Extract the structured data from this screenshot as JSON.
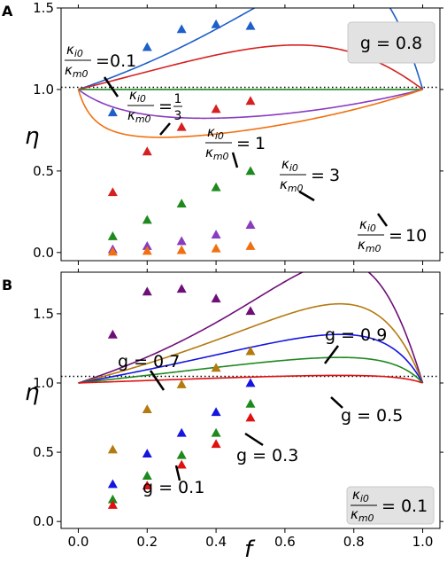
{
  "chart_data": [
    {
      "panel": "A",
      "type": "line",
      "xlabel": "f",
      "ylabel": "η",
      "xlim": [
        -0.05,
        1.05
      ],
      "ylim": [
        -0.05,
        1.5
      ],
      "yticks": [
        0.0,
        0.5,
        1.0,
        1.5
      ],
      "ytick_labels": [
        "0.0",
        "0.5",
        "1.0",
        "1.5"
      ],
      "xticks": [
        0.0,
        0.2,
        0.4,
        0.6,
        0.8,
        1.0
      ],
      "reference_line": {
        "y": 1.0,
        "style": "dotted"
      },
      "box_label": "g = 0.8",
      "marker": "triangle",
      "series": [
        {
          "ratio": "0.1",
          "color": "#1f5fc8",
          "points": {
            "x": [
              0.1,
              0.2,
              0.3,
              0.4,
              0.5
            ],
            "y": [
              0.86,
              1.26,
              1.37,
              1.4,
              1.39
            ]
          }
        },
        {
          "ratio": "1/3",
          "color": "#d62020",
          "points": {
            "x": [
              0.1,
              0.2,
              0.3,
              0.4,
              0.5
            ],
            "y": [
              0.37,
              0.62,
              0.77,
              0.88,
              0.93
            ]
          }
        },
        {
          "ratio": "1",
          "color": "#1e8a1e",
          "points": {
            "x": [
              0.1,
              0.2,
              0.3,
              0.4,
              0.5
            ],
            "y": [
              0.1,
              0.2,
              0.3,
              0.4,
              0.5
            ]
          }
        },
        {
          "ratio": "3",
          "color": "#8a3cc0",
          "points": {
            "x": [
              0.1,
              0.2,
              0.3,
              0.4,
              0.5
            ],
            "y": [
              0.02,
              0.04,
              0.07,
              0.11,
              0.17
            ]
          }
        },
        {
          "ratio": "10",
          "color": "#f07010",
          "points": {
            "x": [
              0.1,
              0.2,
              0.3,
              0.4,
              0.5
            ],
            "y": [
              0.005,
              0.01,
              0.015,
              0.025,
              0.04
            ]
          }
        }
      ],
      "annotations": [
        {
          "ratio": "0.1"
        },
        {
          "ratio": "1/3"
        },
        {
          "ratio": "1"
        },
        {
          "ratio": "3"
        },
        {
          "ratio": "10"
        }
      ]
    },
    {
      "panel": "B",
      "type": "line",
      "xlabel": "f",
      "ylabel": "η",
      "xlim": [
        -0.05,
        1.05
      ],
      "ylim": [
        -0.05,
        1.8
      ],
      "yticks": [
        0.0,
        0.5,
        1.0,
        1.5
      ],
      "ytick_labels": [
        "0.0",
        "0.5",
        "1.0",
        "1.5"
      ],
      "xticks": [
        0.0,
        0.2,
        0.4,
        0.6,
        0.8,
        1.0
      ],
      "xtick_labels": [
        "0.0",
        "0.2",
        "0.4",
        "0.6",
        "0.8",
        "1.0"
      ],
      "reference_line": {
        "y": 1.0,
        "style": "dotted"
      },
      "box_label": "= 0.1",
      "marker": "triangle",
      "series": [
        {
          "g": "0.9",
          "color": "#6e0f78",
          "points": {
            "x": [
              0.1,
              0.2,
              0.3,
              0.4,
              0.5
            ],
            "y": [
              1.35,
              1.66,
              1.68,
              1.61,
              1.52
            ]
          }
        },
        {
          "g": "0.7",
          "color": "#b47a10",
          "points": {
            "x": [
              0.1,
              0.2,
              0.3,
              0.4,
              0.5
            ],
            "y": [
              0.52,
              0.81,
              0.99,
              1.11,
              1.23
            ]
          }
        },
        {
          "g": "0.5",
          "color": "#1515e0",
          "points": {
            "x": [
              0.1,
              0.2,
              0.3,
              0.4,
              0.5
            ],
            "y": [
              0.27,
              0.49,
              0.64,
              0.79,
              1.0
            ]
          }
        },
        {
          "g": "0.3",
          "color": "#1e8a1e",
          "points": {
            "x": [
              0.1,
              0.2,
              0.3,
              0.4,
              0.5
            ],
            "y": [
              0.16,
              0.33,
              0.48,
              0.64,
              0.85
            ]
          }
        },
        {
          "g": "0.1",
          "color": "#e01010",
          "points": {
            "x": [
              0.1,
              0.2,
              0.3,
              0.4,
              0.5
            ],
            "y": [
              0.12,
              0.26,
              0.41,
              0.56,
              0.75
            ]
          }
        }
      ],
      "annotations": [
        {
          "text": "g = 0.9"
        },
        {
          "text": "g = 0.7"
        },
        {
          "text": "g = 0.5"
        },
        {
          "text": "g = 0.3"
        },
        {
          "text": "g = 0.1"
        }
      ]
    }
  ],
  "labels": {
    "panel_a": "A",
    "panel_b": "B",
    "xlabel": "f",
    "ylabel_a": "η",
    "ylabel_b": "η",
    "box_a": "g = 0.8",
    "kappa_num": "κ",
    "kappa_num_sub": "i0",
    "kappa_den": "κ",
    "kappa_den_sub": "m0",
    "eq": "=",
    "r01": "0.1",
    "r1": "1",
    "r3": "3",
    "r10": "10",
    "third_num": "1",
    "third_den": "3",
    "box_b_value": "= 0.1"
  }
}
